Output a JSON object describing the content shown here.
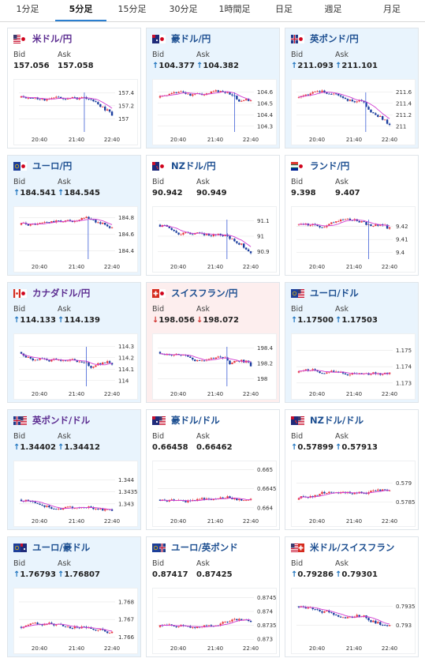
{
  "tabs": [
    {
      "label": "1分足",
      "active": false
    },
    {
      "label": "5分足",
      "active": true
    },
    {
      "label": "15分足",
      "active": false
    },
    {
      "label": "30分足",
      "active": false
    },
    {
      "label": "1時間足",
      "active": false
    },
    {
      "label": "日足",
      "active": false
    },
    {
      "label": "週足",
      "active": false
    },
    {
      "label": "月足",
      "active": false
    }
  ],
  "labels": {
    "bid": "Bid",
    "ask": "Ask"
  },
  "colors": {
    "up": "#1e73be",
    "down": "#d0312d",
    "candle_up": "#e8343d",
    "candle_down": "#1a3d9e",
    "ma": "#d13cd1"
  },
  "cards": [
    {
      "name": "米ドル/円",
      "flag": "us-jp",
      "theme": "white",
      "name_color": "purple",
      "bid": "157.056",
      "ask": "157.058",
      "dir": "none",
      "chart": {
        "ymin": 156.8,
        "ymax": 157.5,
        "yticks": [
          "157.4",
          "157.2",
          "157"
        ],
        "xticks": [
          "20:40",
          "21:40",
          "22:40"
        ],
        "seed": 11,
        "drift": -0.45,
        "spike": 0.68
      }
    },
    {
      "name": "豪ドル/円",
      "flag": "au-jp",
      "theme": "blue",
      "name_color": "blue",
      "bid": "104.377",
      "ask": "104.382",
      "dir": "up",
      "chart": {
        "ymin": 104.25,
        "ymax": 104.65,
        "yticks": [
          "104.6",
          "104.5",
          "104.4",
          "104.3"
        ],
        "xticks": [
          "20:40",
          "21:40",
          "22:40"
        ],
        "seed": 23,
        "drift": -0.4,
        "spike": 0.8
      }
    },
    {
      "name": "英ポンド/円",
      "flag": "gb-jp",
      "theme": "blue",
      "name_color": "blue",
      "bid": "211.093",
      "ask": "211.101",
      "dir": "up",
      "chart": {
        "ymin": 210.9,
        "ymax": 211.7,
        "yticks": [
          "211.6",
          "211.4",
          "211.2",
          "211"
        ],
        "xticks": [
          "20:40",
          "21:40",
          "22:40"
        ],
        "seed": 37,
        "drift": -0.45,
        "spike": 0.72
      }
    },
    {
      "name": "ユーロ/円",
      "flag": "eu-jp",
      "theme": "blue",
      "name_color": "blue",
      "bid": "184.541",
      "ask": "184.545",
      "dir": "up",
      "chart": {
        "ymin": 184.3,
        "ymax": 184.85,
        "yticks": [
          "184.8",
          "184.6",
          "184.4"
        ],
        "xticks": [
          "20:40",
          "21:40",
          "22:40"
        ],
        "seed": 41,
        "drift": -0.35,
        "spike": 0.72
      }
    },
    {
      "name": "NZドル/円",
      "flag": "nz-jp",
      "theme": "white",
      "name_color": "blue",
      "bid": "90.942",
      "ask": "90.949",
      "dir": "none",
      "chart": {
        "ymin": 90.85,
        "ymax": 91.15,
        "yticks": [
          "91.1",
          "91",
          "90.9"
        ],
        "xticks": [
          "20:40",
          "21:40",
          "22:40"
        ],
        "seed": 53,
        "drift": -0.45,
        "spike": 0.72
      }
    },
    {
      "name": "ランド/円",
      "flag": "za-jp",
      "theme": "white",
      "name_color": "blue",
      "bid": "9.398",
      "ask": "9.407",
      "dir": "none",
      "chart": {
        "ymin": 9.395,
        "ymax": 9.43,
        "yticks": [
          "9.42",
          "9.41",
          "9.4"
        ],
        "xticks": [
          "20:40",
          "21:40",
          "22:40"
        ],
        "seed": 61,
        "drift": -0.4,
        "spike": 0.75
      }
    },
    {
      "name": "カナダドル/円",
      "flag": "ca-jp",
      "theme": "blue",
      "name_color": "purple",
      "bid": "114.133",
      "ask": "114.139",
      "dir": "up",
      "chart": {
        "ymin": 113.95,
        "ymax": 114.35,
        "yticks": [
          "114.3",
          "114.2",
          "114.1",
          "114"
        ],
        "xticks": [
          "20:40",
          "21:40",
          "22:40"
        ],
        "seed": 71,
        "drift": -0.4,
        "spike": 0.7
      }
    },
    {
      "name": "スイスフラン/円",
      "flag": "ch-jp",
      "theme": "pink",
      "name_color": "blue",
      "bid": "198.056",
      "ask": "198.072",
      "dir": "down",
      "chart": {
        "ymin": 197.9,
        "ymax": 198.5,
        "yticks": [
          "198.4",
          "198.2",
          "198"
        ],
        "xticks": [
          "20:40",
          "21:40",
          "22:40"
        ],
        "seed": 83,
        "drift": -0.45,
        "spike": 0.72
      }
    },
    {
      "name": "ユーロ/ドル",
      "flag": "eu-us",
      "theme": "blue",
      "name_color": "blue",
      "bid": "1.17500",
      "ask": "1.17503",
      "dir": "up",
      "chart": {
        "ymin": 1.1728,
        "ymax": 1.1756,
        "yticks": [
          "1.175",
          "1.174",
          "1.173"
        ],
        "xticks": [
          "20:40",
          "21:40",
          "22:40"
        ],
        "seed": 97,
        "drift": 0.5,
        "spike": 0
      }
    },
    {
      "name": "英ポンド/ドル",
      "flag": "gb-us",
      "theme": "blue",
      "name_color": "purple",
      "bid": "1.34402",
      "ask": "1.34412",
      "dir": "up",
      "chart": {
        "ymin": 1.3426,
        "ymax": 1.3445,
        "yticks": [
          "1.344",
          "1.3435",
          "1.343"
        ],
        "xticks": [
          "20:40",
          "21:40",
          "22:40"
        ],
        "seed": 101,
        "drift": 0.1,
        "spike": 0
      }
    },
    {
      "name": "豪ドル/ドル",
      "flag": "au-us",
      "theme": "white",
      "name_color": "blue",
      "bid": "0.66458",
      "ask": "0.66462",
      "dir": "none",
      "chart": {
        "ymin": 0.66385,
        "ymax": 0.66505,
        "yticks": [
          "0.665",
          "0.6645",
          "0.664"
        ],
        "xticks": [
          "20:40",
          "21:40",
          "22:40"
        ],
        "seed": 113,
        "drift": 0.5,
        "spike": 0
      }
    },
    {
      "name": "NZドル/ドル",
      "flag": "nz-us",
      "theme": "white",
      "name_color": "blue",
      "bid": "0.57899",
      "ask": "0.57913",
      "dir": "up",
      "chart": {
        "ymin": 0.5782,
        "ymax": 0.5794,
        "yticks": [
          "0.579",
          "0.5785"
        ],
        "xticks": [
          "20:40",
          "21:40",
          "22:40"
        ],
        "seed": 127,
        "drift": 0.45,
        "spike": 0
      }
    },
    {
      "name": "ユーロ/豪ドル",
      "flag": "eu-au",
      "theme": "blue",
      "name_color": "blue",
      "bid": "1.76793",
      "ask": "1.76807",
      "dir": "up",
      "chart": {
        "ymin": 1.7658,
        "ymax": 1.7684,
        "yticks": [
          "1.768",
          "1.767",
          "1.766"
        ],
        "xticks": [
          "20:40",
          "21:40",
          "22:40"
        ],
        "seed": 131,
        "drift": 0.35,
        "spike": 0
      }
    },
    {
      "name": "ユーロ/英ポンド",
      "flag": "eu-gb",
      "theme": "white",
      "name_color": "blue",
      "bid": "0.87417",
      "ask": "0.87425",
      "dir": "none",
      "chart": {
        "ymin": 0.87295,
        "ymax": 0.8746,
        "yticks": [
          "0.8745",
          "0.874",
          "0.8735",
          "0.873"
        ],
        "xticks": [
          "20:40",
          "21:40",
          "22:40"
        ],
        "seed": 139,
        "drift": 0.5,
        "spike": 0
      }
    },
    {
      "name": "米ドル/スイスフラン",
      "flag": "us-ch",
      "theme": "white",
      "name_color": "blue",
      "bid": "0.79286",
      "ask": "0.79301",
      "dir": "up",
      "chart": {
        "ymin": 0.7926,
        "ymax": 0.7938,
        "yticks": [
          "0.7935",
          "0.793"
        ],
        "xticks": [
          "20:40",
          "21:40",
          "22:40"
        ],
        "seed": 149,
        "drift": -0.3,
        "spike": 0
      }
    }
  ]
}
